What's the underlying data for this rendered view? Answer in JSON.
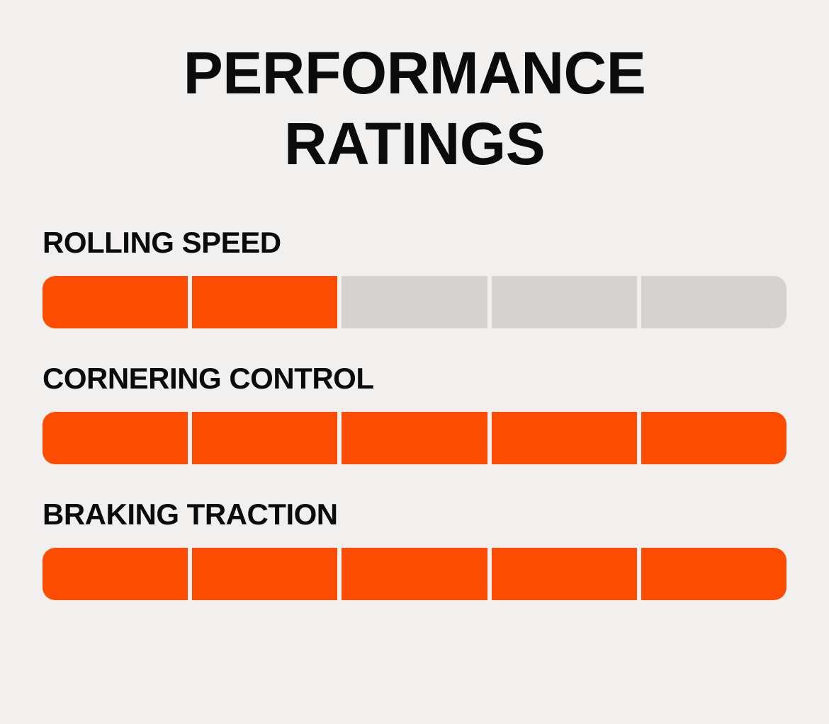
{
  "title": {
    "line1": "PERFORMANCE",
    "line2": "RATINGS"
  },
  "colors": {
    "filled": "#fc4c02",
    "empty": "#d4d3d1",
    "background": "#f1f0ee",
    "text": "#0b0b0b"
  },
  "chart_data": {
    "type": "bar",
    "title": "PERFORMANCE RATINGS",
    "orientation": "horizontal",
    "categories": [
      "ROLLING SPEED",
      "CORNERING CONTROL",
      "BRAKING TRACTION"
    ],
    "values": [
      2,
      5,
      5
    ],
    "max": 5,
    "segments_per_bar": 5,
    "legend": "none",
    "grid": false
  }
}
